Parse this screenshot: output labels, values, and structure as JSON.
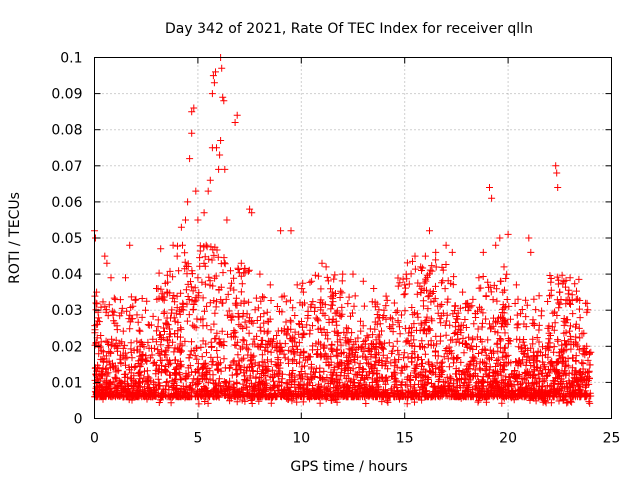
{
  "chart_data": {
    "type": "scatter",
    "title": "Day 342 of 2021, Rate Of TEC Index for receiver qlln",
    "xlabel": "GPS time / hours",
    "ylabel": "ROTI / TECUs",
    "xlim": [
      0,
      25
    ],
    "ylim": [
      0,
      0.1
    ],
    "x_ticks": [
      0,
      5,
      10,
      15,
      20,
      25
    ],
    "y_ticks": [
      0,
      0.01,
      0.02,
      0.03,
      0.04,
      0.05,
      0.06,
      0.07,
      0.08,
      0.09,
      0.1
    ],
    "x_tick_labels": [
      "0",
      "5",
      "10",
      "15",
      "20",
      "25"
    ],
    "y_tick_labels": [
      "0",
      "0.01",
      "0.02",
      "0.03",
      "0.04",
      "0.05",
      "0.06",
      "0.07",
      "0.08",
      "0.09",
      "0.1"
    ],
    "grid": true,
    "marker": "+",
    "color": "#ff0000",
    "x_range_observed": [
      0,
      24
    ],
    "series": [
      {
        "name": "ROTI",
        "points": [
          [
            0.0,
            0.052
          ],
          [
            0.05,
            0.05
          ],
          [
            0.1,
            0.035
          ],
          [
            0.15,
            0.027
          ],
          [
            0.3,
            0.023
          ],
          [
            0.5,
            0.045
          ],
          [
            0.6,
            0.043
          ],
          [
            0.8,
            0.039
          ],
          [
            1.0,
            0.033
          ],
          [
            1.5,
            0.039
          ],
          [
            1.7,
            0.048
          ],
          [
            2.0,
            0.033
          ],
          [
            2.3,
            0.028
          ],
          [
            2.6,
            0.026
          ],
          [
            3.0,
            0.036
          ],
          [
            3.2,
            0.047
          ],
          [
            3.5,
            0.035
          ],
          [
            3.8,
            0.048
          ],
          [
            4.0,
            0.045
          ],
          [
            4.2,
            0.053
          ],
          [
            4.4,
            0.055
          ],
          [
            4.5,
            0.06
          ],
          [
            4.6,
            0.072
          ],
          [
            4.7,
            0.079
          ],
          [
            4.7,
            0.085
          ],
          [
            4.8,
            0.086
          ],
          [
            4.9,
            0.063
          ],
          [
            5.0,
            0.055
          ],
          [
            5.3,
            0.057
          ],
          [
            5.4,
            0.048
          ],
          [
            5.5,
            0.063
          ],
          [
            5.6,
            0.066
          ],
          [
            5.7,
            0.075
          ],
          [
            5.7,
            0.09
          ],
          [
            5.75,
            0.095
          ],
          [
            5.8,
            0.093
          ],
          [
            5.85,
            0.096
          ],
          [
            5.9,
            0.075
          ],
          [
            6.0,
            0.069
          ],
          [
            6.05,
            0.073
          ],
          [
            6.1,
            0.077
          ],
          [
            6.1,
            0.1
          ],
          [
            6.15,
            0.097
          ],
          [
            6.2,
            0.089
          ],
          [
            6.25,
            0.088
          ],
          [
            6.3,
            0.069
          ],
          [
            6.4,
            0.055
          ],
          [
            6.8,
            0.082
          ],
          [
            6.9,
            0.084
          ],
          [
            7.1,
            0.043
          ],
          [
            7.5,
            0.058
          ],
          [
            7.6,
            0.057
          ],
          [
            8.0,
            0.04
          ],
          [
            8.5,
            0.037
          ],
          [
            9.0,
            0.052
          ],
          [
            9.5,
            0.052
          ],
          [
            9.8,
            0.037
          ],
          [
            10.1,
            0.035
          ],
          [
            10.5,
            0.038
          ],
          [
            11.0,
            0.043
          ],
          [
            11.2,
            0.042
          ],
          [
            11.5,
            0.035
          ],
          [
            12.0,
            0.04
          ],
          [
            12.5,
            0.04
          ],
          [
            13.0,
            0.038
          ],
          [
            13.5,
            0.036
          ],
          [
            14.0,
            0.03
          ],
          [
            14.5,
            0.032
          ],
          [
            15.0,
            0.037
          ],
          [
            15.5,
            0.045
          ],
          [
            16.0,
            0.045
          ],
          [
            16.2,
            0.052
          ],
          [
            16.5,
            0.046
          ],
          [
            17.0,
            0.048
          ],
          [
            17.3,
            0.046
          ],
          [
            17.8,
            0.035
          ],
          [
            18.3,
            0.033
          ],
          [
            18.8,
            0.046
          ],
          [
            19.1,
            0.064
          ],
          [
            19.2,
            0.061
          ],
          [
            19.4,
            0.048
          ],
          [
            19.6,
            0.05
          ],
          [
            19.8,
            0.042
          ],
          [
            20.0,
            0.051
          ],
          [
            20.4,
            0.037
          ],
          [
            21.0,
            0.05
          ],
          [
            21.1,
            0.046
          ],
          [
            21.5,
            0.034
          ],
          [
            22.0,
            0.034
          ],
          [
            22.3,
            0.07
          ],
          [
            22.35,
            0.068
          ],
          [
            22.4,
            0.064
          ],
          [
            22.5,
            0.035
          ],
          [
            23.0,
            0.039
          ],
          [
            23.3,
            0.033
          ],
          [
            23.8,
            0.02
          ]
        ],
        "envelope_note": "Dense band of thousands of points between ~0.004 and ~0.025 TECU across 0–24 h"
      }
    ]
  }
}
